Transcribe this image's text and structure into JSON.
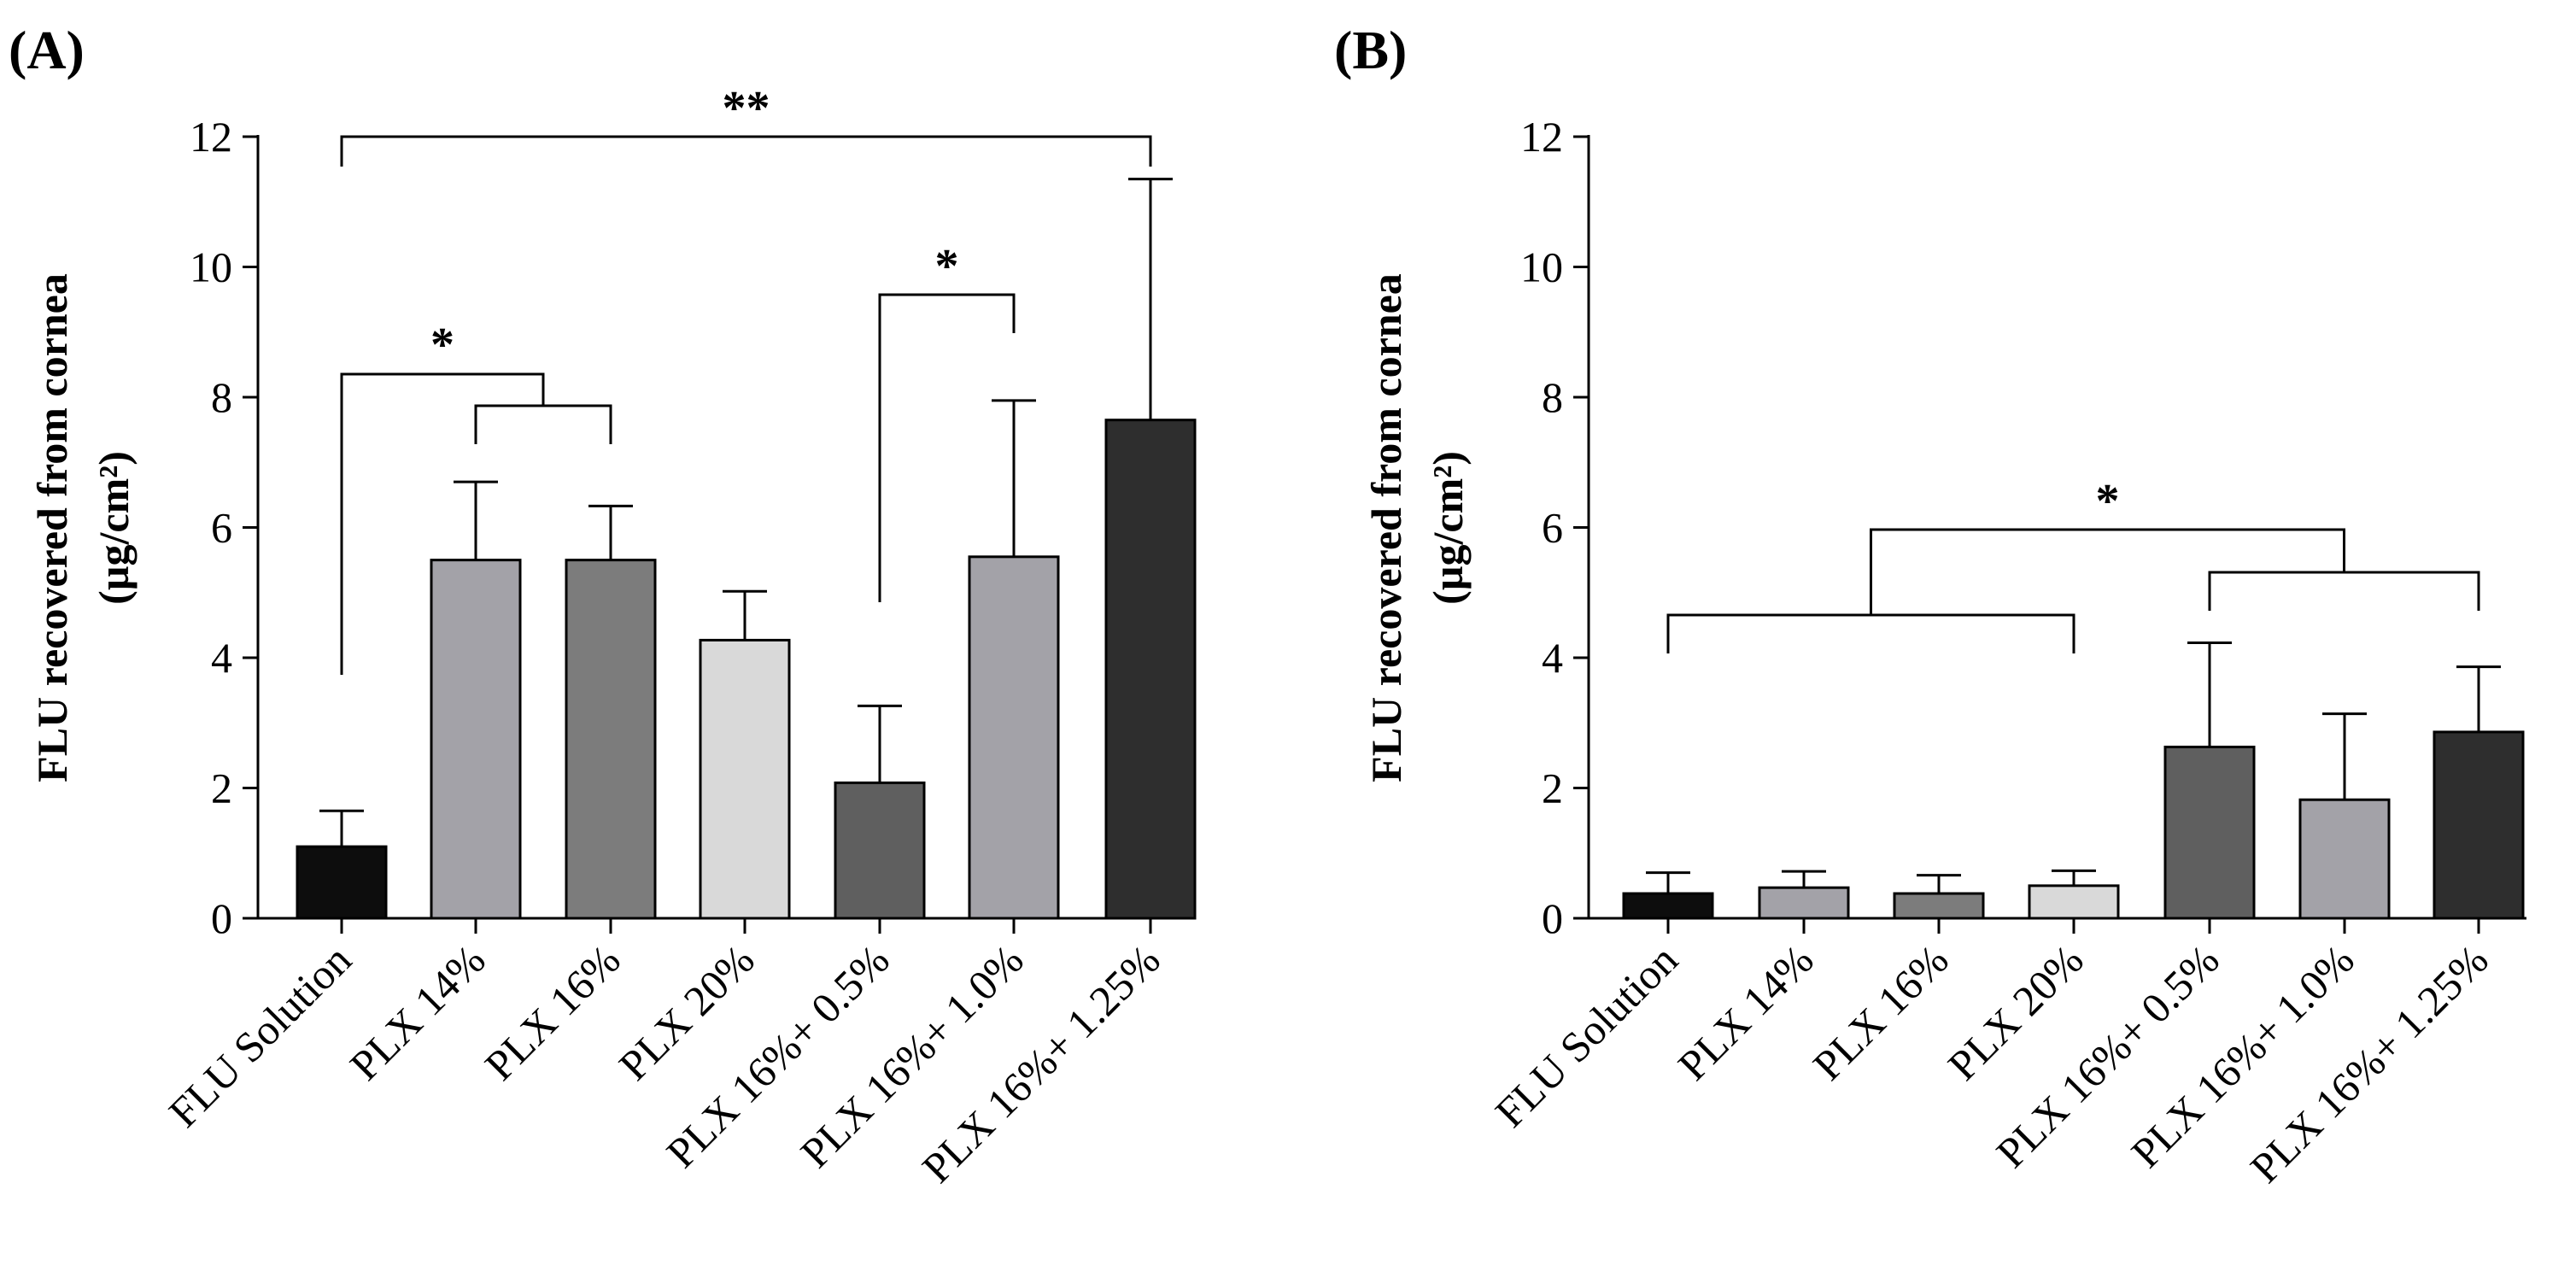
{
  "chart_data": [
    {
      "panel": "(A)",
      "type": "bar",
      "ylabel_line1": "FLU recovered from cornea",
      "ylabel_line2": "(µg/cm²)",
      "ylim": [
        0,
        12
      ],
      "yticks": [
        "0",
        "2",
        "4",
        "6",
        "8",
        "10",
        "12"
      ],
      "categories": [
        "FLU Solution",
        "PLX 14%",
        "PLX 16%",
        "PLX 20%",
        "PLX 16%+ 0.5%",
        "PLX 16%+ 1.0%",
        "PLX 16%+ 1.25%"
      ],
      "values": [
        1.1,
        5.5,
        5.5,
        4.27,
        2.08,
        5.55,
        7.65
      ],
      "errors": [
        0.55,
        1.2,
        0.83,
        0.75,
        1.18,
        2.4,
        3.7
      ],
      "colors": [
        "#0d0d0d",
        "#a3a2a8",
        "#7c7c7c",
        "#d9d9d9",
        "#5f5f5f",
        "#a3a2a8",
        "#2e2e2e"
      ],
      "significance": [
        {
          "label": "**",
          "from": 0,
          "to": 6
        },
        {
          "label": "*",
          "from": 0,
          "to": "1-2"
        },
        {
          "label": "*",
          "from": 4,
          "to": 5
        }
      ]
    },
    {
      "panel": "(B)",
      "type": "bar",
      "ylabel_line1": "FLU recovered from cornea",
      "ylabel_line2": "(µg/cm²)",
      "ylim": [
        0,
        12
      ],
      "yticks": [
        "0",
        "2",
        "4",
        "6",
        "8",
        "10",
        "12"
      ],
      "categories": [
        "FLU Solution",
        "PLX 14%",
        "PLX 16%",
        "PLX 20%",
        "PLX 16%+ 0.5%",
        "PLX 16%+ 1.0%",
        "PLX 16%+ 1.25%"
      ],
      "values": [
        0.38,
        0.47,
        0.38,
        0.5,
        2.63,
        1.82,
        2.86
      ],
      "errors": [
        0.32,
        0.25,
        0.28,
        0.23,
        1.6,
        1.32,
        1.0
      ],
      "colors": [
        "#0d0d0d",
        "#a3a2a8",
        "#7c7c7c",
        "#d9d9d9",
        "#5f5f5f",
        "#a3a2a8",
        "#2e2e2e"
      ],
      "significance": [
        {
          "label": "*",
          "from": "0-3",
          "to": "4-6"
        }
      ]
    }
  ]
}
